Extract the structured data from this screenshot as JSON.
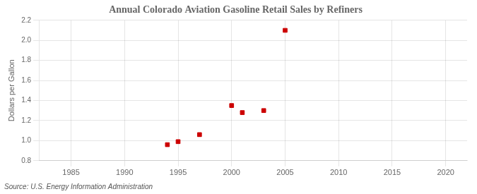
{
  "chart_data": {
    "type": "scatter",
    "title": "Annual Colorado Aviation Gasoline Retail Sales by Refiners",
    "ylabel": "Dollars per Gallon",
    "annotation": "Source: U.S. Energy Information Administration",
    "x": [
      1994,
      1995,
      1997,
      2000,
      2001,
      2003,
      2005
    ],
    "values": [
      0.96,
      0.99,
      1.06,
      1.35,
      1.28,
      1.3,
      2.1
    ],
    "color": "#cc0000",
    "marker": "square",
    "xlim": [
      1982,
      2022
    ],
    "ylim": [
      0.8,
      2.2
    ],
    "xticks": [
      1985,
      1990,
      1995,
      2000,
      2005,
      2010,
      2015,
      2020
    ],
    "yticks": [
      0.8,
      {
        "value": 1.0,
        "label": "1.0"
      },
      1.2,
      1.4,
      1.6,
      1.8,
      {
        "value": 2.0,
        "label": "2.0"
      },
      2.2
    ],
    "grid": true
  }
}
